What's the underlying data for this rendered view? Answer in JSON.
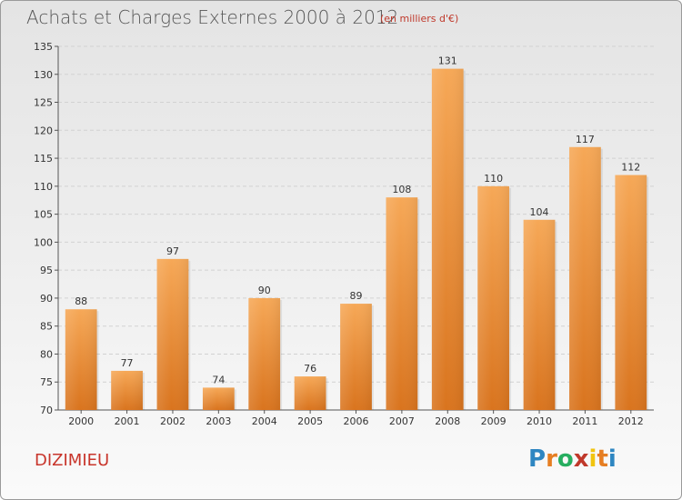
{
  "header": {
    "title": "Achats et Charges Externes 2000 à 2012",
    "subtitle": "(en milliers d'€)"
  },
  "footer": {
    "city": "DIZIMIEU",
    "logo_letters": [
      "P",
      "r",
      "o",
      "x",
      "i",
      "t",
      "i"
    ]
  },
  "colors": {
    "bar_top": "#f6a857",
    "bar_bottom": "#d9741e",
    "city": "#c8352b",
    "logo": [
      "#2e86c1",
      "#e67e22",
      "#27ae60",
      "#c0392b",
      "#f1c40f",
      "#e67e22",
      "#2e86c1"
    ]
  },
  "chart_data": {
    "type": "bar",
    "categories": [
      "2000",
      "2001",
      "2002",
      "2003",
      "2004",
      "2005",
      "2006",
      "2007",
      "2008",
      "2009",
      "2010",
      "2011",
      "2012"
    ],
    "values": [
      88,
      77,
      97,
      74,
      90,
      76,
      89,
      108,
      131,
      110,
      104,
      117,
      112
    ],
    "title": "Achats et Charges Externes 2000 à 2012",
    "ylim": [
      70,
      135
    ],
    "yticks": [
      70,
      75,
      80,
      85,
      90,
      95,
      100,
      105,
      110,
      115,
      120,
      125,
      130,
      135
    ],
    "grid": true,
    "legend": "none"
  }
}
